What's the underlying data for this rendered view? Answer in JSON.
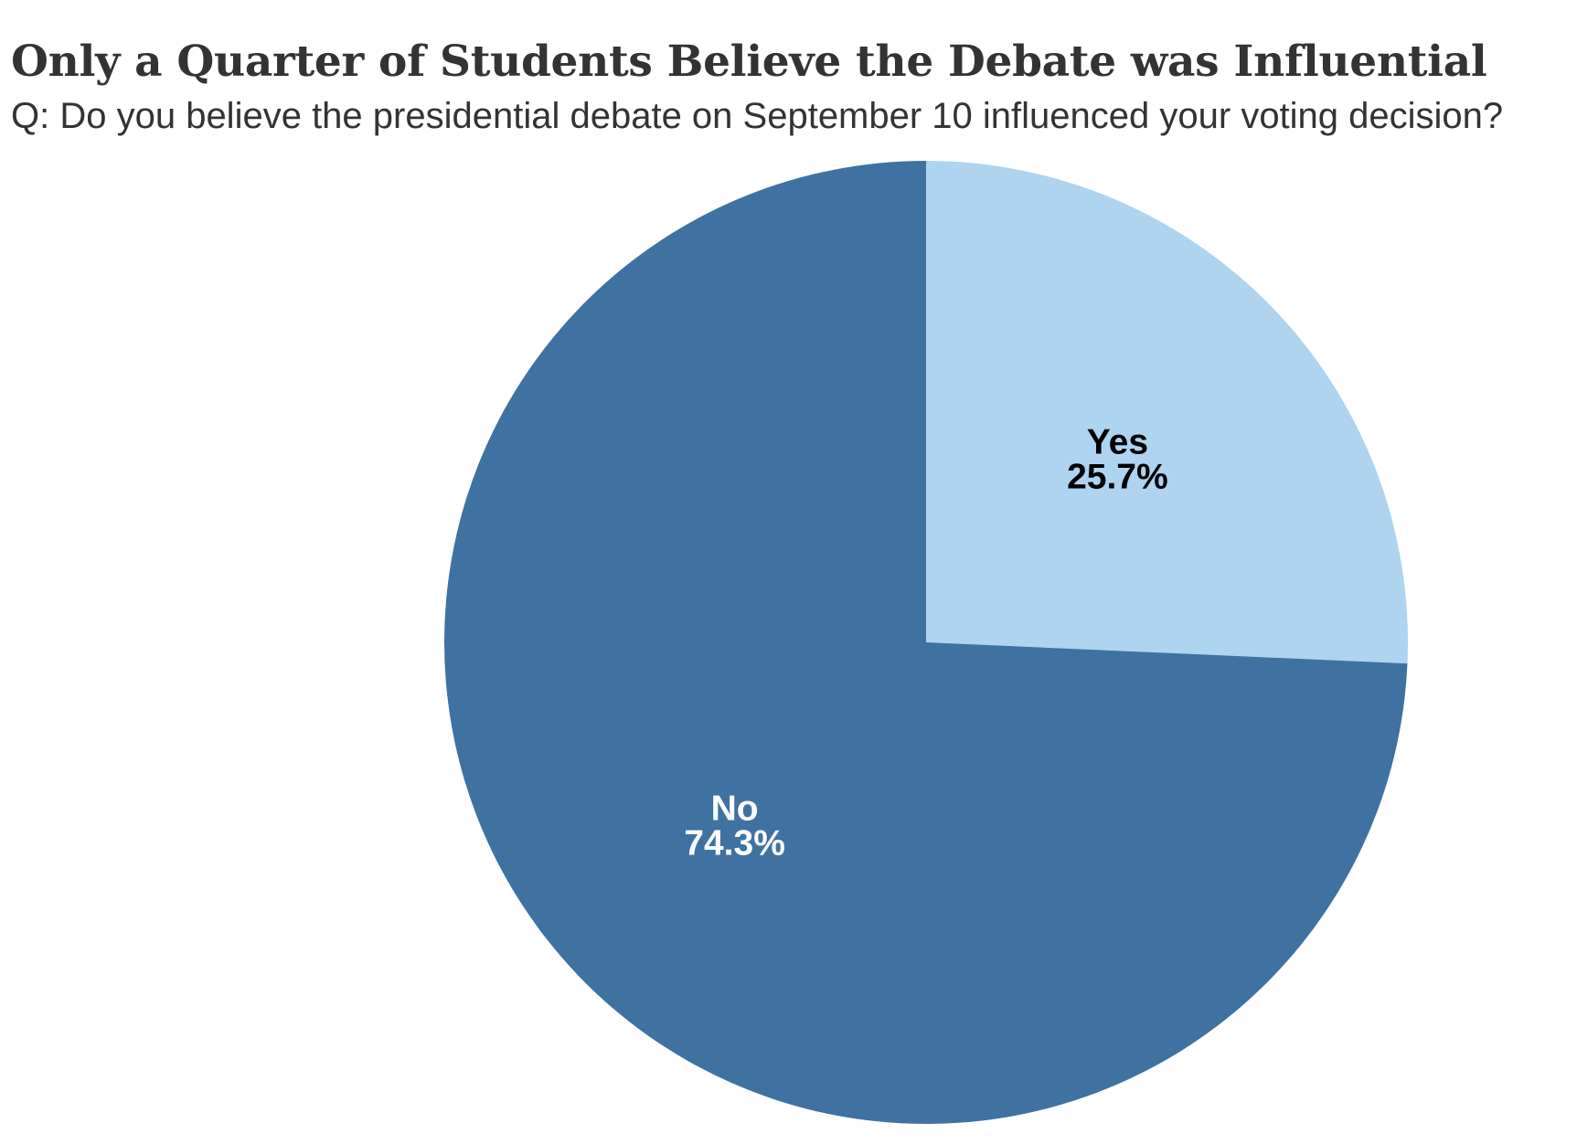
{
  "chart_data": {
    "type": "pie",
    "title": "Only a Quarter of Students Believe the Debate was Influential",
    "subtitle": "Q: Do you believe the presidential debate on September 10 influenced your voting decision?",
    "categories": [
      "Yes",
      "No"
    ],
    "values": [
      25.7,
      74.3
    ],
    "value_labels": [
      "25.7%",
      "74.3%"
    ],
    "colors": [
      "#aed4f0",
      "#3f72a1"
    ],
    "label_colors": [
      "#000000",
      "#ffffff"
    ],
    "start_angle": "12 o'clock",
    "direction": "clockwise",
    "legend": "none"
  }
}
